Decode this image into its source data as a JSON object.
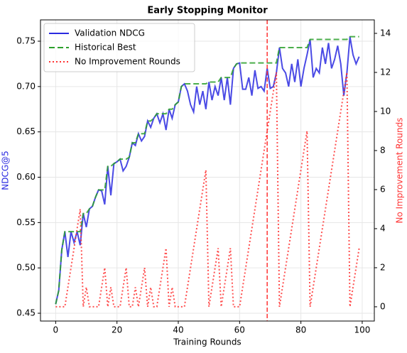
{
  "chart_data": {
    "type": "line",
    "title": "Early Stopping Monitor",
    "xlabel": "Training Rounds",
    "ylabel": "NDCG@5",
    "y2label": "No Improvement Rounds",
    "x": [
      0,
      1,
      2,
      3,
      4,
      5,
      6,
      7,
      8,
      9,
      10,
      11,
      12,
      13,
      14,
      15,
      16,
      17,
      18,
      19,
      20,
      21,
      22,
      23,
      24,
      25,
      26,
      27,
      28,
      29,
      30,
      31,
      32,
      33,
      34,
      35,
      36,
      37,
      38,
      39,
      40,
      41,
      42,
      43,
      44,
      45,
      46,
      47,
      48,
      49,
      50,
      51,
      52,
      53,
      54,
      55,
      56,
      57,
      58,
      59,
      60,
      61,
      62,
      63,
      64,
      65,
      66,
      67,
      68,
      69,
      70,
      71,
      72,
      73,
      74,
      75,
      76,
      77,
      78,
      79,
      80,
      81,
      82,
      83,
      84,
      85,
      86,
      87,
      88,
      89,
      90,
      91,
      92,
      93,
      94,
      95,
      96,
      97,
      98,
      99
    ],
    "series": [
      {
        "name": "Validation NDCG",
        "color": "#2a2ae0",
        "linestyle": "solid",
        "axis": "y",
        "values": [
          0.46,
          0.475,
          0.52,
          0.54,
          0.512,
          0.54,
          0.528,
          0.54,
          0.525,
          0.56,
          0.545,
          0.565,
          0.568,
          0.578,
          0.586,
          0.585,
          0.57,
          0.612,
          0.58,
          0.615,
          0.617,
          0.62,
          0.607,
          0.612,
          0.622,
          0.638,
          0.635,
          0.648,
          0.64,
          0.645,
          0.662,
          0.655,
          0.665,
          0.67,
          0.66,
          0.67,
          0.652,
          0.675,
          0.665,
          0.68,
          0.683,
          0.7,
          0.703,
          0.695,
          0.68,
          0.672,
          0.7,
          0.68,
          0.695,
          0.675,
          0.705,
          0.685,
          0.7,
          0.69,
          0.71,
          0.685,
          0.71,
          0.68,
          0.72,
          0.725,
          0.726,
          0.697,
          0.697,
          0.71,
          0.69,
          0.718,
          0.698,
          0.7,
          0.695,
          0.72,
          0.698,
          0.7,
          0.715,
          0.743,
          0.72,
          0.715,
          0.7,
          0.725,
          0.705,
          0.73,
          0.7,
          0.72,
          0.735,
          0.752,
          0.71,
          0.72,
          0.715,
          0.743,
          0.725,
          0.748,
          0.72,
          0.73,
          0.745,
          0.725,
          0.69,
          0.715,
          0.755,
          0.735,
          0.725,
          0.733
        ]
      },
      {
        "name": "Historical Best",
        "color": "#2ca02c",
        "linestyle": "dashed",
        "axis": "y",
        "values": [
          0.46,
          0.475,
          0.52,
          0.54,
          0.54,
          0.54,
          0.54,
          0.54,
          0.54,
          0.56,
          0.56,
          0.565,
          0.568,
          0.578,
          0.586,
          0.586,
          0.586,
          0.612,
          0.612,
          0.615,
          0.617,
          0.62,
          0.62,
          0.62,
          0.622,
          0.638,
          0.638,
          0.648,
          0.648,
          0.648,
          0.662,
          0.662,
          0.665,
          0.67,
          0.67,
          0.67,
          0.67,
          0.675,
          0.675,
          0.68,
          0.683,
          0.7,
          0.703,
          0.703,
          0.703,
          0.703,
          0.703,
          0.703,
          0.703,
          0.703,
          0.705,
          0.705,
          0.705,
          0.705,
          0.71,
          0.71,
          0.71,
          0.71,
          0.72,
          0.725,
          0.726,
          0.726,
          0.726,
          0.726,
          0.726,
          0.726,
          0.726,
          0.726,
          0.726,
          0.726,
          0.726,
          0.726,
          0.726,
          0.743,
          0.743,
          0.743,
          0.743,
          0.743,
          0.743,
          0.743,
          0.743,
          0.743,
          0.743,
          0.752,
          0.752,
          0.752,
          0.752,
          0.752,
          0.752,
          0.752,
          0.752,
          0.752,
          0.752,
          0.752,
          0.752,
          0.752,
          0.755,
          0.755,
          0.755,
          0.755
        ]
      },
      {
        "name": "No Improvement Rounds",
        "color": "#ff3333",
        "linestyle": "dotted",
        "axis": "y2",
        "values": [
          0,
          0,
          0,
          0,
          1,
          2,
          3,
          4,
          5,
          0,
          1,
          0,
          0,
          0,
          0,
          1,
          2,
          0,
          1,
          0,
          0,
          0,
          1,
          2,
          0,
          0,
          1,
          0,
          1,
          2,
          0,
          1,
          0,
          0,
          1,
          2,
          3,
          0,
          1,
          0,
          0,
          0,
          0,
          1,
          2,
          3,
          4,
          5,
          6,
          7,
          0,
          1,
          2,
          3,
          0,
          1,
          2,
          3,
          0,
          0,
          0,
          1,
          2,
          3,
          4,
          5,
          6,
          7,
          8,
          9,
          10,
          11,
          12,
          0,
          1,
          2,
          3,
          4,
          5,
          6,
          7,
          8,
          9,
          0,
          1,
          2,
          3,
          4,
          5,
          6,
          7,
          8,
          9,
          10,
          11,
          12,
          0,
          1,
          2,
          3
        ]
      }
    ],
    "vline_x": 69,
    "vline_color": "#ff3333",
    "xlim": [
      -4.95,
      103.95
    ],
    "xticks": [
      0,
      20,
      40,
      60,
      80,
      100
    ],
    "ylim": [
      0.4414,
      0.7735
    ],
    "yticks": [
      0.45,
      {
        "value": 0.5,
        "label": "0.50"
      },
      0.55,
      {
        "value": 0.6,
        "label": "0.60"
      },
      0.65,
      {
        "value": 0.7,
        "label": "0.70"
      },
      0.75
    ],
    "y2lim": [
      -0.73,
      14.69
    ],
    "y2ticks": [
      0,
      2,
      4,
      6,
      8,
      10,
      12,
      14
    ],
    "grid": true,
    "legend": "upper left"
  }
}
